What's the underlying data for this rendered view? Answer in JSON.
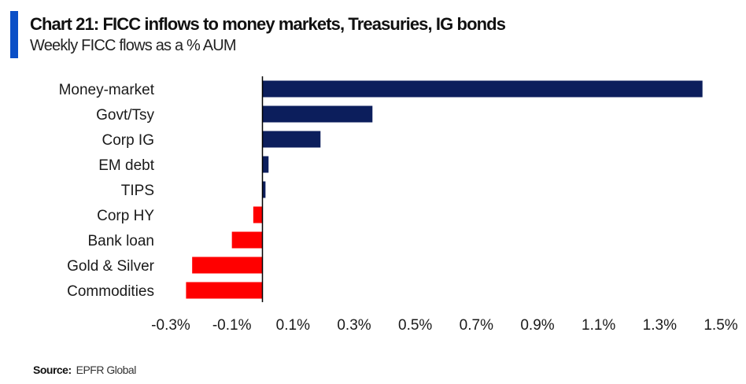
{
  "header": {
    "title": "Chart 21: FICC inflows to money markets, Treasuries, IG bonds",
    "subtitle": "Weekly FICC flows as a % AUM"
  },
  "footer": {
    "source_label": "Source:",
    "source_value": "EPFR Global"
  },
  "colors": {
    "accent": "#0a4fc7",
    "positive": "#0c1e5c",
    "negative": "#ff0000",
    "axis": "#000000"
  },
  "chart_data": {
    "type": "bar",
    "orientation": "horizontal",
    "title": "Chart 21: FICC inflows to money markets, Treasuries, IG bonds",
    "subtitle": "Weekly FICC flows as a % AUM",
    "xlabel": "",
    "ylabel": "",
    "categories": [
      "Money-market",
      "Govt/Tsy",
      "Corp IG",
      "EM debt",
      "TIPS",
      "Corp HY",
      "Bank loan",
      "Gold & Silver",
      "Commodities"
    ],
    "values": [
      1.44,
      0.36,
      0.19,
      0.02,
      0.01,
      -0.03,
      -0.1,
      -0.23,
      -0.25
    ],
    "unit": "%",
    "xlim": [
      -0.3,
      1.5
    ],
    "xticks": [
      -0.3,
      -0.1,
      0.1,
      0.3,
      0.5,
      0.7,
      0.9,
      1.1,
      1.3,
      1.5
    ],
    "xtick_labels": [
      "-0.3%",
      "-0.1%",
      "0.1%",
      "0.3%",
      "0.5%",
      "0.7%",
      "0.9%",
      "1.1%",
      "1.3%",
      "1.5%"
    ],
    "grid": false,
    "legend": "none"
  }
}
